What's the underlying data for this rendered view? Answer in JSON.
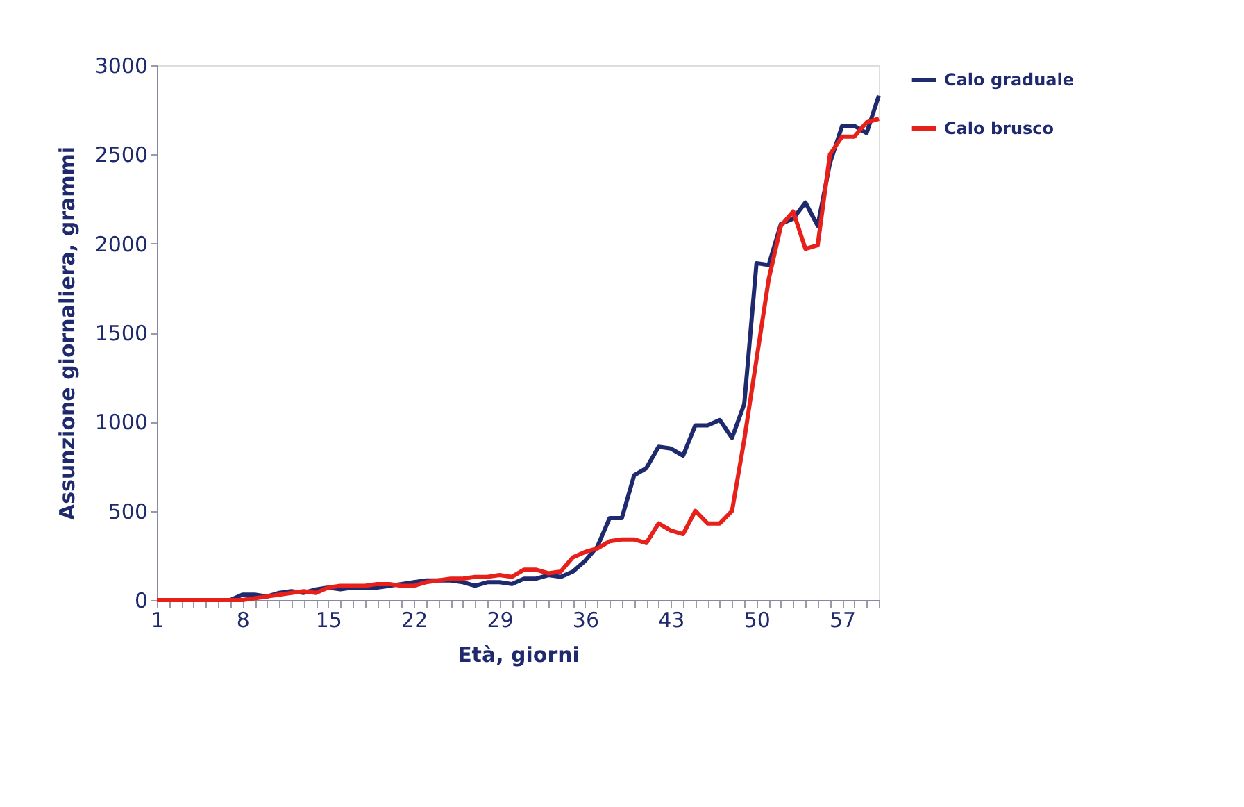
{
  "chart_data": {
    "type": "line",
    "xlabel": "Età, giorni",
    "ylabel": "Assunzione giornaliera, grammi",
    "x": [
      1,
      2,
      3,
      4,
      5,
      6,
      7,
      8,
      9,
      10,
      11,
      12,
      13,
      14,
      15,
      16,
      17,
      18,
      19,
      20,
      21,
      22,
      23,
      24,
      25,
      26,
      27,
      28,
      29,
      30,
      31,
      32,
      33,
      34,
      35,
      36,
      37,
      38,
      39,
      40,
      41,
      42,
      43,
      44,
      45,
      46,
      47,
      48,
      49,
      50,
      51,
      52,
      53,
      54,
      55,
      56,
      57,
      58,
      59,
      60
    ],
    "series": [
      {
        "name": "Calo graduale",
        "color": "#1f2a6e",
        "values": [
          0,
          0,
          0,
          0,
          0,
          0,
          0,
          30,
          30,
          20,
          40,
          50,
          40,
          60,
          70,
          60,
          70,
          70,
          70,
          80,
          90,
          100,
          110,
          110,
          110,
          100,
          80,
          100,
          100,
          90,
          120,
          120,
          140,
          130,
          160,
          220,
          300,
          460,
          460,
          700,
          740,
          860,
          850,
          810,
          980,
          980,
          1010,
          910,
          1100,
          1890,
          1880,
          2110,
          2140,
          2230,
          2100,
          2450,
          2660,
          2660,
          2620,
          2830
        ]
      },
      {
        "name": "Calo brusco",
        "color": "#e8201a",
        "values": [
          0,
          0,
          0,
          0,
          0,
          0,
          0,
          0,
          10,
          20,
          30,
          40,
          50,
          40,
          70,
          80,
          80,
          80,
          90,
          90,
          80,
          80,
          100,
          110,
          120,
          120,
          130,
          130,
          140,
          130,
          170,
          170,
          150,
          160,
          240,
          270,
          290,
          330,
          340,
          340,
          320,
          430,
          390,
          370,
          500,
          430,
          430,
          500,
          900,
          1350,
          1800,
          2100,
          2180,
          1970,
          1990,
          2500,
          2600,
          2600,
          2680,
          2700
        ]
      }
    ],
    "xlim": [
      1,
      60
    ],
    "xticks": [
      1,
      {
        "value": 2,
        "label": null
      },
      {
        "value": 3,
        "label": null
      },
      {
        "value": 4,
        "label": null
      },
      {
        "value": 5,
        "label": null
      },
      {
        "value": 6,
        "label": null
      },
      {
        "value": 7,
        "label": null
      },
      8,
      {
        "value": 9,
        "label": null
      },
      {
        "value": 10,
        "label": null
      },
      {
        "value": 11,
        "label": null
      },
      {
        "value": 12,
        "label": null
      },
      {
        "value": 13,
        "label": null
      },
      {
        "value": 14,
        "label": null
      },
      15,
      {
        "value": 16,
        "label": null
      },
      {
        "value": 17,
        "label": null
      },
      {
        "value": 18,
        "label": null
      },
      {
        "value": 19,
        "label": null
      },
      {
        "value": 20,
        "label": null
      },
      {
        "value": 21,
        "label": null
      },
      22,
      {
        "value": 23,
        "label": null
      },
      {
        "value": 24,
        "label": null
      },
      {
        "value": 25,
        "label": null
      },
      {
        "value": 26,
        "label": null
      },
      {
        "value": 27,
        "label": null
      },
      {
        "value": 28,
        "label": null
      },
      29,
      {
        "value": 30,
        "label": null
      },
      {
        "value": 31,
        "label": null
      },
      {
        "value": 32,
        "label": null
      },
      {
        "value": 33,
        "label": null
      },
      {
        "value": 34,
        "label": null
      },
      {
        "value": 35,
        "label": null
      },
      36,
      {
        "value": 37,
        "label": null
      },
      {
        "value": 38,
        "label": null
      },
      {
        "value": 39,
        "label": null
      },
      {
        "value": 40,
        "label": null
      },
      {
        "value": 41,
        "label": null
      },
      {
        "value": 42,
        "label": null
      },
      43,
      {
        "value": 44,
        "label": null
      },
      {
        "value": 45,
        "label": null
      },
      {
        "value": 46,
        "label": null
      },
      {
        "value": 47,
        "label": null
      },
      {
        "value": 48,
        "label": null
      },
      {
        "value": 49,
        "label": null
      },
      50,
      {
        "value": 51,
        "label": null
      },
      {
        "value": 52,
        "label": null
      },
      {
        "value": 53,
        "label": null
      },
      {
        "value": 54,
        "label": null
      },
      {
        "value": 55,
        "label": null
      },
      {
        "value": 56,
        "label": null
      },
      57,
      {
        "value": 58,
        "label": null
      },
      {
        "value": 59,
        "label": null
      },
      {
        "value": 60,
        "label": null
      }
    ],
    "ylim": [
      0,
      3000
    ],
    "yticks": [
      0,
      500,
      1000,
      1500,
      2000,
      2500,
      3000
    ],
    "grid": false,
    "legend": "right",
    "marker": "none",
    "line_style": "solid"
  }
}
